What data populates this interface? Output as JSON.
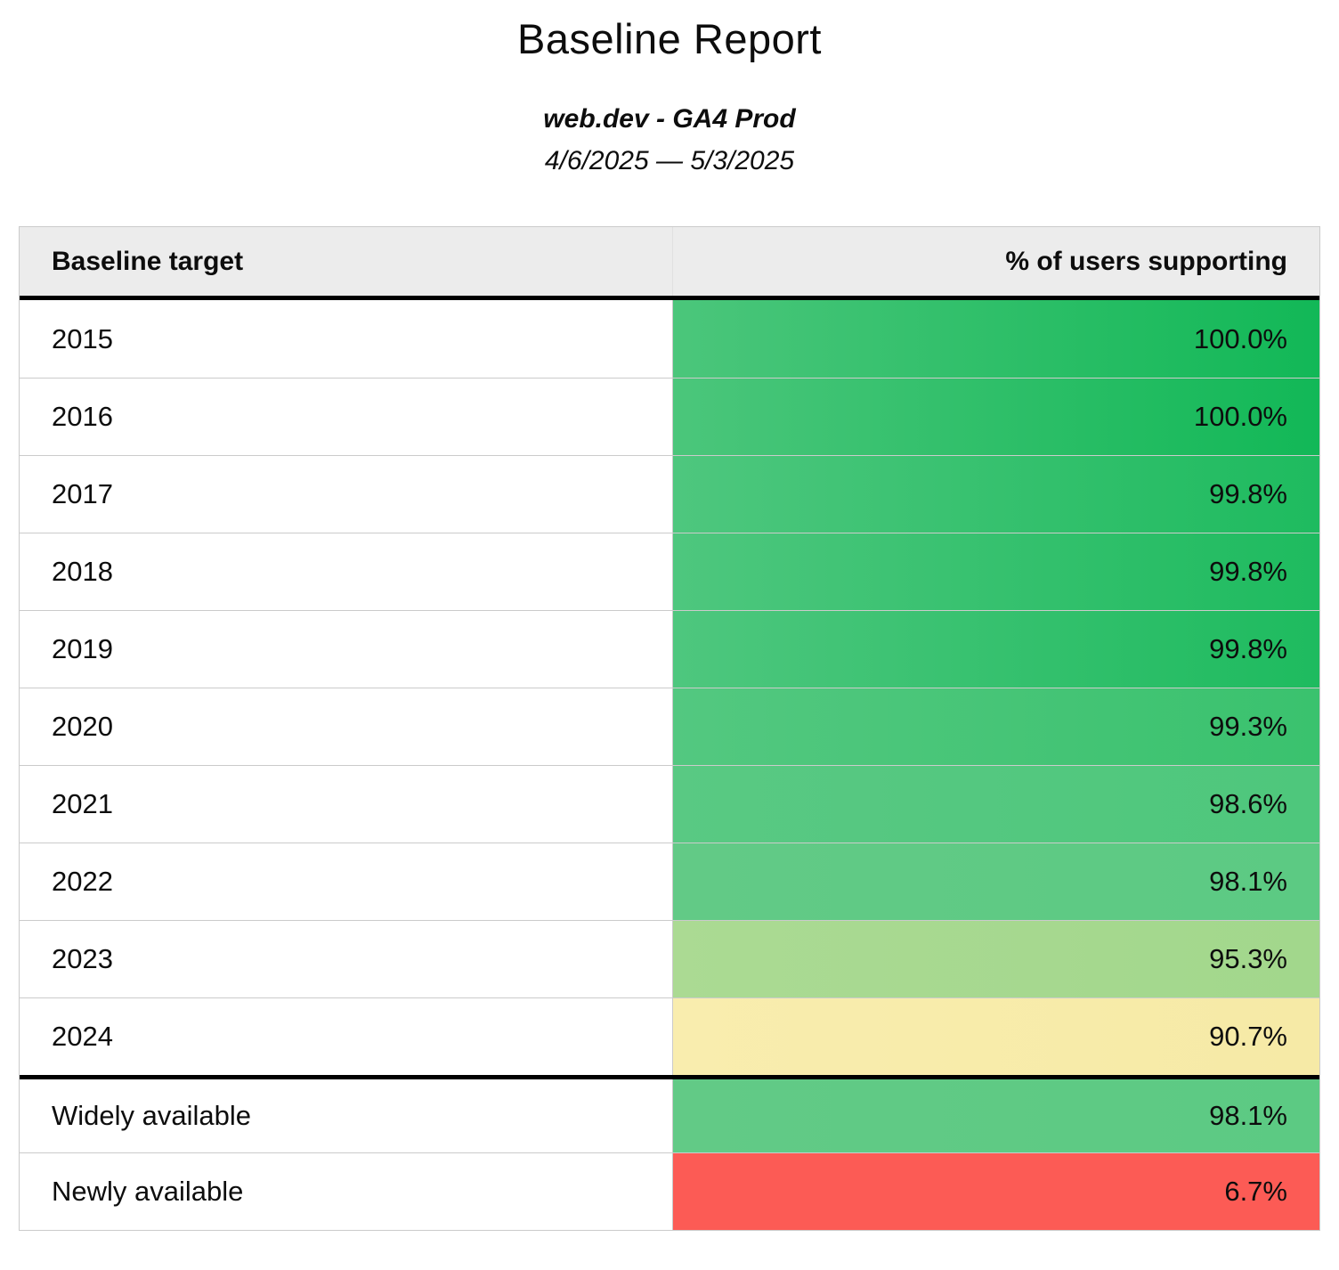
{
  "page": {
    "title": "Baseline Report",
    "subtitle": "web.dev - GA4 Prod",
    "date_range": "4/6/2025 — 5/3/2025"
  },
  "table": {
    "col_target": "Baseline target",
    "col_value": "% of users supporting",
    "rows": [
      {
        "target": "2015",
        "value": "100.0%",
        "bg_left": "#4bc67b",
        "bg_right": "#12b857",
        "section": "year"
      },
      {
        "target": "2016",
        "value": "100.0%",
        "bg_left": "#4bc67b",
        "bg_right": "#12b857",
        "section": "year"
      },
      {
        "target": "2017",
        "value": "99.8%",
        "bg_left": "#4ec77e",
        "bg_right": "#1ebb5f",
        "section": "year"
      },
      {
        "target": "2018",
        "value": "99.8%",
        "bg_left": "#4ec77e",
        "bg_right": "#1ebb5f",
        "section": "year"
      },
      {
        "target": "2019",
        "value": "99.8%",
        "bg_left": "#4ec77e",
        "bg_right": "#1ebb5f",
        "section": "year"
      },
      {
        "target": "2020",
        "value": "99.3%",
        "bg_left": "#53c880",
        "bg_right": "#3ac26e",
        "section": "year"
      },
      {
        "target": "2021",
        "value": "98.6%",
        "bg_left": "#59c983",
        "bg_right": "#4ec77c",
        "section": "year"
      },
      {
        "target": "2022",
        "value": "98.1%",
        "bg_left": "#62ca86",
        "bg_right": "#5cca83",
        "section": "year"
      },
      {
        "target": "2023",
        "value": "95.3%",
        "bg_left": "#abda93",
        "bg_right": "#a2d78c",
        "section": "year"
      },
      {
        "target": "2024",
        "value": "90.7%",
        "bg_left": "#f9edae",
        "bg_right": "#f6eaa6",
        "section": "year"
      },
      {
        "target": "Widely available",
        "value": "98.1%",
        "bg_left": "#62ca86",
        "bg_right": "#5cca83",
        "section": "summary"
      },
      {
        "target": "Newly available",
        "value": "6.7%",
        "bg_left": "#fc5b55",
        "bg_right": "#fc5b55",
        "section": "summary"
      }
    ],
    "colors": {
      "header_bg": "#ececec",
      "border_light": "#cbcbcb",
      "border_strong": "#000000",
      "text": "#0d0d0d"
    }
  },
  "chart_data": {
    "type": "table",
    "title": "Baseline Report",
    "subtitle": "web.dev - GA4 Prod",
    "date_range": "4/6/2025 — 5/3/2025",
    "columns": [
      "Baseline target",
      "% of users supporting"
    ],
    "categories": [
      "2015",
      "2016",
      "2017",
      "2018",
      "2019",
      "2020",
      "2021",
      "2022",
      "2023",
      "2024",
      "Widely available",
      "Newly available"
    ],
    "values": [
      100.0,
      100.0,
      99.8,
      99.8,
      99.8,
      99.3,
      98.6,
      98.1,
      95.3,
      90.7,
      98.1,
      6.7
    ],
    "value_unit": "%",
    "color_scale": "green-yellow-red heatmap on value column",
    "layout": "two sections separated by thick black rule: yearly targets (2015-2024) and availability summary (Widely/Newly available)"
  }
}
